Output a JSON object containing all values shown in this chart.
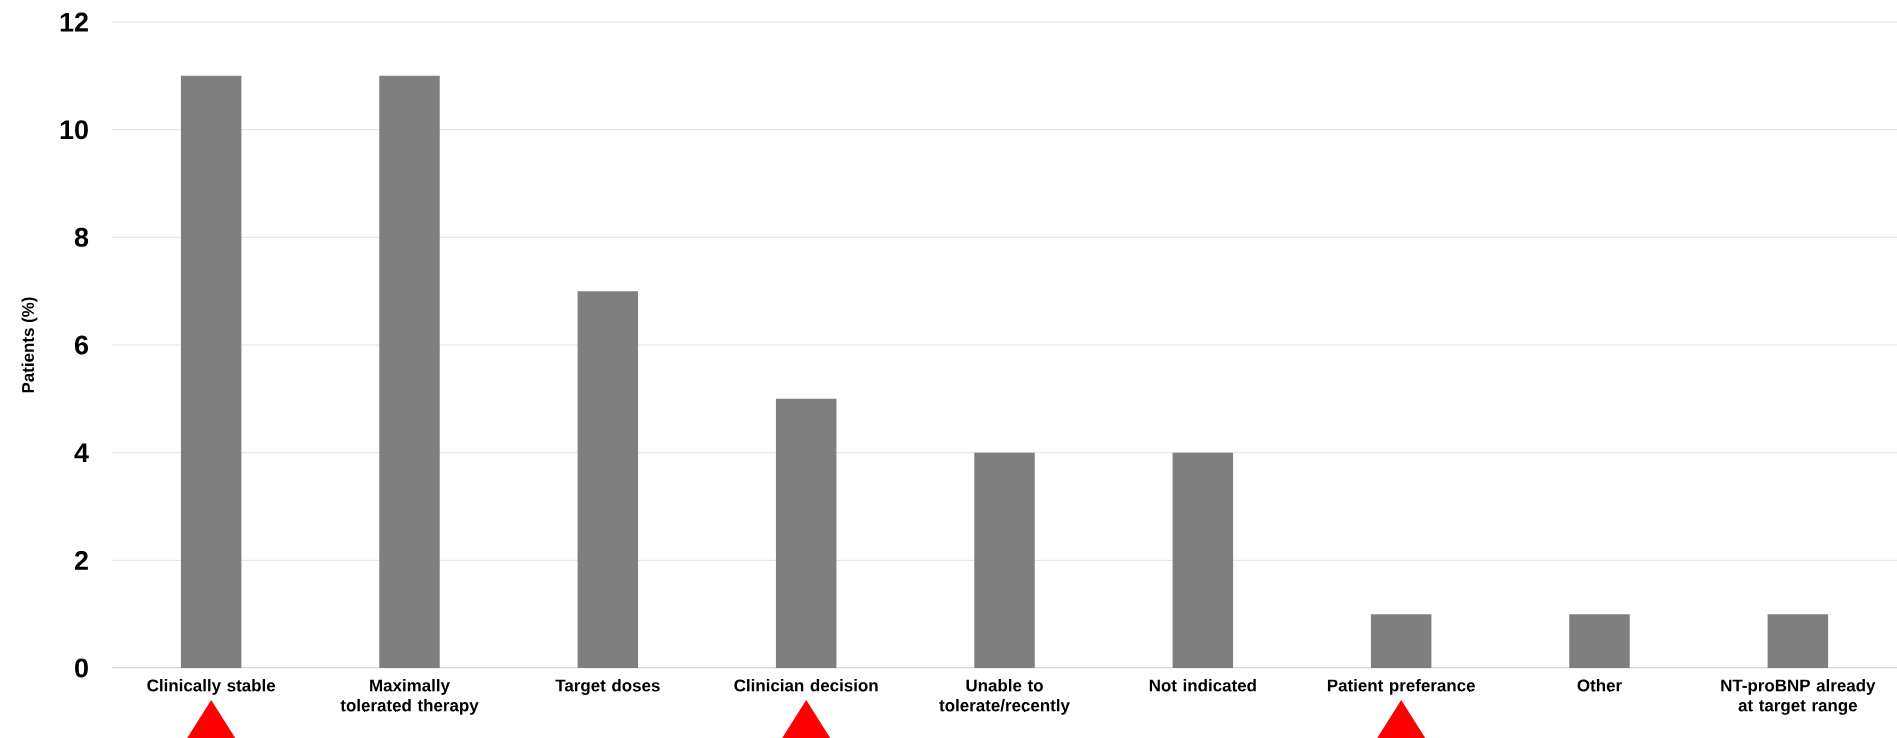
{
  "chart_data": {
    "type": "bar",
    "ylabel": "Patients (%)",
    "categories": [
      "Clinically stable",
      "Maximally tolerated therapy",
      "Target doses",
      "Clinician decision",
      "Unable to tolerate/recently",
      "Not indicated",
      "Patient preferance",
      "Other",
      "NT-proBNP already at target range"
    ],
    "values": [
      11,
      11,
      7,
      5,
      4,
      4,
      1,
      1,
      1
    ],
    "color": "#7f7f7f",
    "ylim": [
      0,
      12
    ],
    "yticks": [
      0,
      2,
      4,
      6,
      8,
      10,
      12
    ],
    "grid": "y"
  }
}
